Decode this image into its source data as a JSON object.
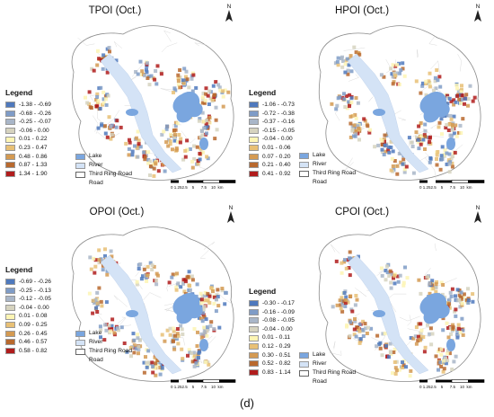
{
  "caption": "(d)",
  "panels": [
    {
      "title": "TPOI (Oct.)",
      "legend_title": "Legend",
      "classes": [
        {
          "label": "-1.38 - -0.69",
          "color": "#4f79bd"
        },
        {
          "label": "-0.68 - -0.26",
          "color": "#7f9cc7"
        },
        {
          "label": "-0.25 - -0.07",
          "color": "#a9b6c8"
        },
        {
          "label": "-0.06 - 0.00",
          "color": "#d6d3bf"
        },
        {
          "label": "0.01 - 0.22",
          "color": "#fdf5b4"
        },
        {
          "label": "0.23 - 0.47",
          "color": "#e8c075"
        },
        {
          "label": "0.48 - 0.86",
          "color": "#d49a52"
        },
        {
          "label": "0.87 - 1.33",
          "color": "#b8692e"
        },
        {
          "label": "1.34 - 1.90",
          "color": "#b01c1c"
        }
      ]
    },
    {
      "title": "HPOI (Oct.)",
      "legend_title": "Legend",
      "classes": [
        {
          "label": "-1.06 - -0.73",
          "color": "#4f79bd"
        },
        {
          "label": "-0.72 - -0.38",
          "color": "#7f9cc7"
        },
        {
          "label": "-0.37 - -0.16",
          "color": "#a9b6c8"
        },
        {
          "label": "-0.15 - -0.05",
          "color": "#d6d3bf"
        },
        {
          "label": "-0.04 - 0.00",
          "color": "#fdf5b4"
        },
        {
          "label": "0.01 - 0.06",
          "color": "#e8c075"
        },
        {
          "label": "0.07 - 0.20",
          "color": "#d49a52"
        },
        {
          "label": "0.21 - 0.40",
          "color": "#b8692e"
        },
        {
          "label": "0.41 - 0.92",
          "color": "#b01c1c"
        }
      ]
    },
    {
      "title": "OPOI (Oct.)",
      "legend_title": "Legend",
      "classes": [
        {
          "label": "-0.69 - -0.26",
          "color": "#4f79bd"
        },
        {
          "label": "-0.25 - -0.13",
          "color": "#7f9cc7"
        },
        {
          "label": "-0.12 - -0.05",
          "color": "#a9b6c8"
        },
        {
          "label": "-0.04 - 0.00",
          "color": "#d6d3bf"
        },
        {
          "label": "0.01 - 0.08",
          "color": "#fdf5b4"
        },
        {
          "label": "0.09 - 0.25",
          "color": "#e8c075"
        },
        {
          "label": "0.26 - 0.45",
          "color": "#d49a52"
        },
        {
          "label": "0.46 - 0.57",
          "color": "#b8692e"
        },
        {
          "label": "0.58 - 0.82",
          "color": "#b01c1c"
        }
      ]
    },
    {
      "title": "CPOI (Oct.)",
      "legend_title": "Legend",
      "classes": [
        {
          "label": "-0.30 - -0.17",
          "color": "#4f79bd"
        },
        {
          "label": "-0.16 - -0.09",
          "color": "#7f9cc7"
        },
        {
          "label": "-0.08 - -0.05",
          "color": "#a9b6c8"
        },
        {
          "label": "-0.04 - 0.00",
          "color": "#d6d3bf"
        },
        {
          "label": "0.01 - 0.11",
          "color": "#fdf5b4"
        },
        {
          "label": "0.12 - 0.29",
          "color": "#e8c075"
        },
        {
          "label": "0.30 - 0.51",
          "color": "#d49a52"
        },
        {
          "label": "0.52 - 0.82",
          "color": "#b8692e"
        },
        {
          "label": "0.83 - 1.14",
          "color": "#b01c1c"
        }
      ]
    }
  ],
  "map_legend": {
    "lake": "Lake",
    "river": "River",
    "road_line1": "Third Ring Road",
    "road_line2": "Road",
    "lake_color": "#7aa6df",
    "river_color": "#d4e3f6"
  },
  "north_label": "N",
  "scale": {
    "ticks": "0 1.252.5    5      7.5    10",
    "unit": "km"
  }
}
